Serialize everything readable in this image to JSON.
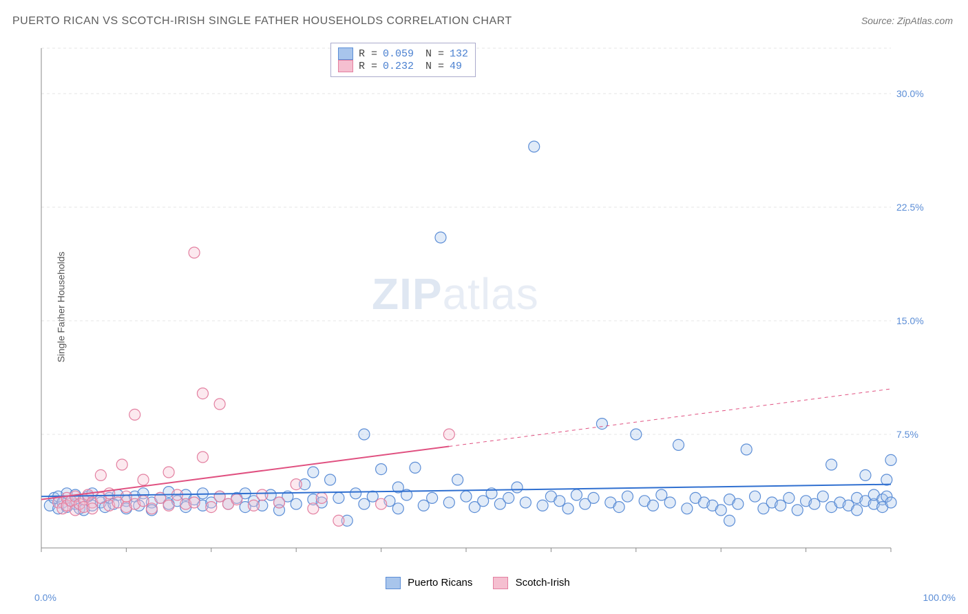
{
  "title": "PUERTO RICAN VS SCOTCH-IRISH SINGLE FATHER HOUSEHOLDS CORRELATION CHART",
  "source": "Source: ZipAtlas.com",
  "ylabel": "Single Father Households",
  "watermark_zip": "ZIP",
  "watermark_atlas": "atlas",
  "chart": {
    "type": "scatter",
    "background_color": "#ffffff",
    "grid_color": "#e5e5e5",
    "grid_dash": "4,4",
    "axis_color": "#888888",
    "xlim": [
      0,
      100
    ],
    "ylim": [
      0,
      33
    ],
    "yticks": [
      7.5,
      15.0,
      22.5,
      30.0
    ],
    "ytick_labels": [
      "7.5%",
      "15.0%",
      "22.5%",
      "30.0%"
    ],
    "xlim_labels": [
      "0.0%",
      "100.0%"
    ],
    "xtick_positions": [
      0,
      10,
      20,
      30,
      40,
      50,
      60,
      70,
      80,
      90,
      100
    ],
    "marker_radius": 8,
    "marker_stroke_width": 1.2,
    "marker_fill_opacity": 0.35,
    "trend_line_width": 2,
    "series": [
      {
        "name": "Puerto Ricans",
        "color_stroke": "#5b8dd6",
        "color_fill": "#a8c5ec",
        "trend_color": "#2f6fd0",
        "R": "0.059",
        "N": "132",
        "trend": {
          "x1": 0,
          "y1": 3.4,
          "x2": 100,
          "y2": 4.2,
          "solid_to_x": 100
        },
        "points": [
          [
            1,
            2.8
          ],
          [
            1.5,
            3.3
          ],
          [
            2,
            2.6
          ],
          [
            2,
            3.4
          ],
          [
            2.5,
            3.0
          ],
          [
            3,
            2.7
          ],
          [
            3,
            3.6
          ],
          [
            3.5,
            3.1
          ],
          [
            4,
            2.9
          ],
          [
            4,
            3.5
          ],
          [
            4.5,
            2.6
          ],
          [
            5,
            3.2
          ],
          [
            5,
            2.5
          ],
          [
            5.5,
            3.4
          ],
          [
            6,
            2.8
          ],
          [
            6,
            3.6
          ],
          [
            7,
            3.0
          ],
          [
            7.5,
            2.7
          ],
          [
            8,
            3.3
          ],
          [
            8.5,
            2.9
          ],
          [
            9,
            3.5
          ],
          [
            10,
            3.1
          ],
          [
            10,
            2.6
          ],
          [
            11,
            3.4
          ],
          [
            11.5,
            2.8
          ],
          [
            12,
            3.6
          ],
          [
            13,
            3.0
          ],
          [
            13,
            2.5
          ],
          [
            14,
            3.3
          ],
          [
            15,
            2.9
          ],
          [
            15,
            3.7
          ],
          [
            16,
            3.1
          ],
          [
            17,
            2.7
          ],
          [
            17,
            3.5
          ],
          [
            18,
            3.2
          ],
          [
            19,
            2.8
          ],
          [
            19,
            3.6
          ],
          [
            20,
            3.0
          ],
          [
            21,
            3.4
          ],
          [
            22,
            2.9
          ],
          [
            23,
            3.3
          ],
          [
            24,
            2.7
          ],
          [
            24,
            3.6
          ],
          [
            25,
            3.1
          ],
          [
            26,
            2.8
          ],
          [
            27,
            3.5
          ],
          [
            28,
            3.0
          ],
          [
            28,
            2.5
          ],
          [
            29,
            3.4
          ],
          [
            30,
            2.9
          ],
          [
            31,
            4.2
          ],
          [
            32,
            3.2
          ],
          [
            32,
            5.0
          ],
          [
            33,
            3.0
          ],
          [
            34,
            4.5
          ],
          [
            35,
            3.3
          ],
          [
            36,
            1.8
          ],
          [
            37,
            3.6
          ],
          [
            38,
            2.9
          ],
          [
            38,
            7.5
          ],
          [
            39,
            3.4
          ],
          [
            40,
            5.2
          ],
          [
            41,
            3.1
          ],
          [
            42,
            4.0
          ],
          [
            42,
            2.6
          ],
          [
            43,
            3.5
          ],
          [
            44,
            5.3
          ],
          [
            45,
            2.8
          ],
          [
            46,
            3.3
          ],
          [
            47,
            20.5
          ],
          [
            48,
            3.0
          ],
          [
            49,
            4.5
          ],
          [
            50,
            3.4
          ],
          [
            51,
            2.7
          ],
          [
            52,
            3.1
          ],
          [
            53,
            3.6
          ],
          [
            54,
            2.9
          ],
          [
            55,
            3.3
          ],
          [
            56,
            4.0
          ],
          [
            57,
            3.0
          ],
          [
            58,
            26.5
          ],
          [
            59,
            2.8
          ],
          [
            60,
            3.4
          ],
          [
            61,
            3.1
          ],
          [
            62,
            2.6
          ],
          [
            63,
            3.5
          ],
          [
            64,
            2.9
          ],
          [
            65,
            3.3
          ],
          [
            66,
            8.2
          ],
          [
            67,
            3.0
          ],
          [
            68,
            2.7
          ],
          [
            69,
            3.4
          ],
          [
            70,
            7.5
          ],
          [
            71,
            3.1
          ],
          [
            72,
            2.8
          ],
          [
            73,
            3.5
          ],
          [
            74,
            3.0
          ],
          [
            75,
            6.8
          ],
          [
            76,
            2.6
          ],
          [
            77,
            3.3
          ],
          [
            78,
            3.0
          ],
          [
            79,
            2.8
          ],
          [
            80,
            2.5
          ],
          [
            81,
            3.2
          ],
          [
            81,
            1.8
          ],
          [
            82,
            2.9
          ],
          [
            83,
            6.5
          ],
          [
            84,
            3.4
          ],
          [
            85,
            2.6
          ],
          [
            86,
            3.0
          ],
          [
            87,
            2.8
          ],
          [
            88,
            3.3
          ],
          [
            89,
            2.5
          ],
          [
            90,
            3.1
          ],
          [
            91,
            2.9
          ],
          [
            92,
            3.4
          ],
          [
            93,
            2.7
          ],
          [
            93,
            5.5
          ],
          [
            94,
            3.0
          ],
          [
            95,
            2.8
          ],
          [
            96,
            3.3
          ],
          [
            96,
            2.5
          ],
          [
            97,
            3.1
          ],
          [
            97,
            4.8
          ],
          [
            98,
            2.9
          ],
          [
            98,
            3.5
          ],
          [
            99,
            3.2
          ],
          [
            99,
            2.7
          ],
          [
            99.5,
            3.4
          ],
          [
            99.5,
            4.5
          ],
          [
            100,
            3.0
          ],
          [
            100,
            5.8
          ]
        ]
      },
      {
        "name": "Scotch-Irish",
        "color_stroke": "#e37fa0",
        "color_fill": "#f5bfd0",
        "trend_color": "#e05080",
        "R": "0.232",
        "N": "49",
        "trend": {
          "x1": 0,
          "y1": 3.2,
          "x2": 100,
          "y2": 10.5,
          "solid_to_x": 48
        },
        "points": [
          [
            2,
            3.0
          ],
          [
            2.5,
            2.6
          ],
          [
            3,
            3.3
          ],
          [
            3,
            2.8
          ],
          [
            3.5,
            3.1
          ],
          [
            4,
            2.5
          ],
          [
            4,
            3.4
          ],
          [
            4.5,
            2.9
          ],
          [
            5,
            3.2
          ],
          [
            5,
            2.7
          ],
          [
            5.5,
            3.5
          ],
          [
            6,
            3.0
          ],
          [
            6,
            2.6
          ],
          [
            7,
            3.3
          ],
          [
            7,
            4.8
          ],
          [
            8,
            2.8
          ],
          [
            8,
            3.6
          ],
          [
            9,
            3.0
          ],
          [
            9.5,
            5.5
          ],
          [
            10,
            2.7
          ],
          [
            10,
            3.4
          ],
          [
            11,
            2.9
          ],
          [
            11,
            8.8
          ],
          [
            12,
            3.1
          ],
          [
            12,
            4.5
          ],
          [
            13,
            2.6
          ],
          [
            14,
            3.3
          ],
          [
            15,
            2.8
          ],
          [
            15,
            5.0
          ],
          [
            16,
            3.5
          ],
          [
            17,
            2.9
          ],
          [
            18,
            3.0
          ],
          [
            18,
            19.5
          ],
          [
            19,
            10.2
          ],
          [
            19,
            6.0
          ],
          [
            20,
            2.7
          ],
          [
            21,
            3.4
          ],
          [
            21,
            9.5
          ],
          [
            22,
            2.9
          ],
          [
            23,
            3.2
          ],
          [
            25,
            2.8
          ],
          [
            26,
            3.5
          ],
          [
            28,
            3.0
          ],
          [
            30,
            4.2
          ],
          [
            32,
            2.6
          ],
          [
            33,
            3.3
          ],
          [
            35,
            1.8
          ],
          [
            40,
            2.9
          ],
          [
            48,
            7.5
          ]
        ]
      }
    ]
  },
  "legend_bottom": {
    "items": [
      {
        "label": "Puerto Ricans",
        "stroke": "#5b8dd6",
        "fill": "#a8c5ec"
      },
      {
        "label": "Scotch-Irish",
        "stroke": "#e37fa0",
        "fill": "#f5bfd0"
      }
    ]
  }
}
